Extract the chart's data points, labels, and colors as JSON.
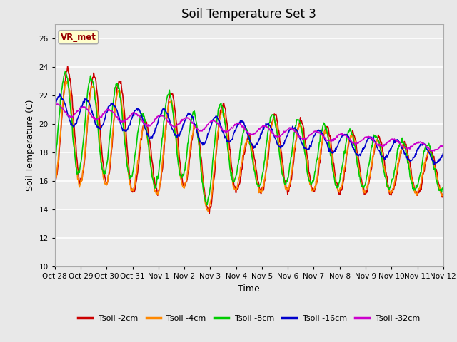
{
  "title": "Soil Temperature Set 3",
  "xlabel": "Time",
  "ylabel": "Soil Temperature (C)",
  "ylim": [
    10,
    27
  ],
  "yticks": [
    10,
    12,
    14,
    16,
    18,
    20,
    22,
    24,
    26
  ],
  "background_color": "#e8e8e8",
  "plot_bg_color": "#ebebeb",
  "grid_color": "#ffffff",
  "annotation_text": "VR_met",
  "annotation_bg": "#ffffcc",
  "annotation_border": "#aaaaaa",
  "annotation_text_color": "#990000",
  "series_colors": [
    "#cc0000",
    "#ff8800",
    "#00cc00",
    "#0000cc",
    "#cc00cc"
  ],
  "series_labels": [
    "Tsoil -2cm",
    "Tsoil -4cm",
    "Tsoil -8cm",
    "Tsoil -16cm",
    "Tsoil -32cm"
  ],
  "num_points": 700,
  "xtick_positions": [
    0,
    1,
    2,
    3,
    4,
    5,
    6,
    7,
    8,
    9,
    10,
    11,
    12,
    13,
    14,
    15
  ],
  "xtick_labels": [
    "Oct 28",
    "Oct 29",
    "Oct 30",
    "Oct 31",
    "Nov 1",
    "Nov 2",
    "Nov 3",
    "Nov 4",
    "Nov 5",
    "Nov 6",
    "Nov 7",
    "Nov 8",
    "Nov 9",
    "Nov 10",
    "Nov 11",
    "Nov 12"
  ]
}
